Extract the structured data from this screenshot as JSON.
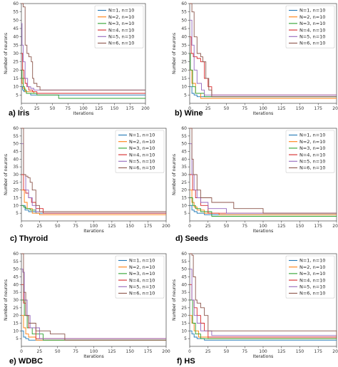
{
  "figure": {
    "colors": [
      "#1f77b4",
      "#ff7f0e",
      "#2ca02c",
      "#d62728",
      "#9467bd",
      "#8c564b"
    ]
  },
  "chart_data": [
    {
      "type": "line",
      "caption": "a) Iris",
      "xlabel": "Iterations",
      "ylabel": "Number of neurons",
      "xlim": [
        0,
        200
      ],
      "ylim": [
        0,
        60
      ],
      "xticks": [
        0,
        25,
        50,
        75,
        100,
        125,
        150,
        175,
        200
      ],
      "yticks": [
        5,
        10,
        15,
        20,
        25,
        30,
        35,
        40,
        45,
        50,
        55,
        60
      ],
      "legend_position": "top-right",
      "grid": false,
      "series": [
        {
          "name": "N=1, n=10",
          "x": [
            0,
            2,
            4,
            8,
            15,
            200
          ],
          "y": [
            10,
            8,
            7,
            6,
            5,
            5
          ]
        },
        {
          "name": "N=2, n=10",
          "x": [
            0,
            1,
            3,
            6,
            20,
            200
          ],
          "y": [
            20,
            12,
            9,
            7,
            6,
            6
          ]
        },
        {
          "name": "N=3, n=10",
          "x": [
            0,
            1,
            3,
            5,
            8,
            25,
            60,
            200
          ],
          "y": [
            20,
            15,
            10,
            8,
            6,
            5,
            3,
            3
          ]
        },
        {
          "name": "N=4, n=10",
          "x": [
            0,
            2,
            4,
            6,
            9,
            12,
            18,
            25,
            200
          ],
          "y": [
            30,
            20,
            15,
            12,
            10,
            8,
            7,
            6,
            6
          ]
        },
        {
          "name": "N=5, n=10",
          "x": [
            0,
            1,
            3,
            6,
            10,
            15,
            20,
            200
          ],
          "y": [
            48,
            35,
            25,
            15,
            10,
            9,
            8,
            8
          ]
        },
        {
          "name": "N=6, n=10",
          "x": [
            0,
            3,
            6,
            9,
            12,
            16,
            18,
            20,
            25,
            30,
            200
          ],
          "y": [
            60,
            58,
            35,
            30,
            28,
            25,
            15,
            12,
            10,
            8,
            8
          ]
        }
      ]
    },
    {
      "type": "line",
      "caption": "b) Wine",
      "xlabel": "Iterations",
      "ylabel": "Number of neurons",
      "xlim": [
        0,
        200
      ],
      "ylim": [
        0,
        60
      ],
      "xticks": [
        0,
        25,
        50,
        75,
        100,
        125,
        150,
        175,
        200
      ],
      "yticks": [
        5,
        10,
        15,
        20,
        25,
        30,
        35,
        40,
        45,
        50,
        55,
        60
      ],
      "legend_position": "top-right",
      "grid": false,
      "series": [
        {
          "name": "N=1, n=10",
          "x": [
            0,
            3,
            6,
            10,
            200
          ],
          "y": [
            10,
            6,
            5,
            4,
            4
          ]
        },
        {
          "name": "N=2, n=10",
          "x": [
            0,
            3,
            8,
            15,
            200
          ],
          "y": [
            20,
            12,
            6,
            3,
            3
          ]
        },
        {
          "name": "N=3, n=10",
          "x": [
            0,
            1,
            4,
            8,
            20,
            200
          ],
          "y": [
            30,
            20,
            10,
            6,
            4,
            4
          ]
        },
        {
          "name": "N=4, n=10",
          "x": [
            0,
            2,
            5,
            10,
            15,
            20,
            25,
            30,
            200
          ],
          "y": [
            40,
            30,
            28,
            27,
            25,
            15,
            10,
            5,
            5
          ]
        },
        {
          "name": "N=5, n=10",
          "x": [
            0,
            3,
            6,
            10,
            16,
            20,
            200
          ],
          "y": [
            50,
            35,
            20,
            12,
            8,
            5,
            5
          ]
        },
        {
          "name": "N=6, n=10",
          "x": [
            0,
            3,
            6,
            10,
            15,
            18,
            22,
            26,
            30,
            200
          ],
          "y": [
            60,
            55,
            40,
            30,
            28,
            25,
            15,
            8,
            4,
            4
          ]
        }
      ]
    },
    {
      "type": "line",
      "caption": "c) Thyroid",
      "xlabel": "Iterations",
      "ylabel": "Number of neurons",
      "xlim": [
        0,
        200
      ],
      "ylim": [
        0,
        60
      ],
      "xticks": [
        0,
        25,
        50,
        75,
        100,
        125,
        150,
        175,
        200
      ],
      "yticks": [
        5,
        10,
        15,
        20,
        25,
        30,
        35,
        40,
        45,
        50,
        55,
        60
      ],
      "legend_position": "top-right",
      "grid": false,
      "series": [
        {
          "name": "N=1, n=10",
          "x": [
            0,
            5,
            10,
            20,
            200
          ],
          "y": [
            10,
            7,
            6,
            5,
            5
          ]
        },
        {
          "name": "N=2, n=10",
          "x": [
            0,
            4,
            8,
            15,
            25,
            200
          ],
          "y": [
            20,
            12,
            8,
            5,
            4,
            4
          ]
        },
        {
          "name": "N=3, n=10",
          "x": [
            0,
            3,
            6,
            12,
            20,
            200
          ],
          "y": [
            10,
            9,
            8,
            7,
            6,
            6
          ]
        },
        {
          "name": "N=4, n=10",
          "x": [
            0,
            3,
            6,
            10,
            14,
            20,
            30,
            200
          ],
          "y": [
            30,
            20,
            18,
            15,
            12,
            8,
            5,
            5
          ]
        },
        {
          "name": "N=5, n=10",
          "x": [
            0,
            3,
            6,
            10,
            15,
            20,
            200
          ],
          "y": [
            50,
            30,
            20,
            15,
            10,
            6,
            6
          ]
        },
        {
          "name": "N=6, n=10",
          "x": [
            0,
            3,
            6,
            9,
            12,
            15,
            20,
            25,
            200
          ],
          "y": [
            60,
            30,
            29,
            28,
            25,
            20,
            10,
            6,
            6
          ]
        }
      ]
    },
    {
      "type": "line",
      "caption": "d) Seeds",
      "xlabel": "Iterations",
      "ylabel": "Number of neurons",
      "xlim": [
        0,
        200
      ],
      "ylim": [
        0,
        60
      ],
      "xticks": [
        0,
        25,
        50,
        75,
        100,
        125,
        150,
        175,
        200
      ],
      "yticks": [
        5,
        10,
        15,
        20,
        25,
        30,
        35,
        40,
        45,
        50,
        55,
        60
      ],
      "legend_position": "top-right",
      "grid": false,
      "series": [
        {
          "name": "N=1, n=10",
          "x": [
            0,
            3,
            6,
            10,
            20,
            200
          ],
          "y": [
            10,
            7,
            6,
            5,
            4,
            4
          ]
        },
        {
          "name": "N=2, n=10",
          "x": [
            0,
            3,
            6,
            10,
            20,
            40,
            200
          ],
          "y": [
            20,
            12,
            9,
            7,
            5,
            4,
            4
          ]
        },
        {
          "name": "N=3, n=10",
          "x": [
            0,
            4,
            8,
            15,
            30,
            200
          ],
          "y": [
            15,
            10,
            8,
            6,
            3,
            3
          ]
        },
        {
          "name": "N=4, n=10",
          "x": [
            0,
            4,
            8,
            15,
            25,
            200
          ],
          "y": [
            30,
            20,
            15,
            10,
            5,
            5
          ]
        },
        {
          "name": "N=5, n=10",
          "x": [
            0,
            3,
            6,
            10,
            15,
            25,
            50,
            200
          ],
          "y": [
            50,
            30,
            20,
            15,
            12,
            8,
            5,
            5
          ]
        },
        {
          "name": "N=6, n=10",
          "x": [
            0,
            3,
            5,
            10,
            15,
            30,
            60,
            100,
            200
          ],
          "y": [
            60,
            40,
            30,
            20,
            15,
            12,
            8,
            5,
            5
          ]
        }
      ]
    },
    {
      "type": "line",
      "caption": "e) WDBC",
      "xlabel": "Iterations",
      "ylabel": "Number of neurons",
      "xlim": [
        0,
        200
      ],
      "ylim": [
        0,
        60
      ],
      "xticks": [
        0,
        25,
        50,
        75,
        100,
        125,
        150,
        175,
        200
      ],
      "yticks": [
        5,
        10,
        15,
        20,
        25,
        30,
        35,
        40,
        45,
        50,
        55,
        60
      ],
      "legend_position": "top-right",
      "grid": false,
      "series": [
        {
          "name": "N=1, n=10",
          "x": [
            0,
            3,
            6,
            10,
            200
          ],
          "y": [
            10,
            6,
            5,
            4,
            4
          ]
        },
        {
          "name": "N=2, n=10",
          "x": [
            0,
            3,
            6,
            10,
            20,
            200
          ],
          "y": [
            20,
            12,
            8,
            6,
            4,
            4
          ]
        },
        {
          "name": "N=3, n=10",
          "x": [
            0,
            4,
            8,
            15,
            30,
            200
          ],
          "y": [
            30,
            20,
            12,
            8,
            4,
            4
          ]
        },
        {
          "name": "N=4, n=10",
          "x": [
            0,
            3,
            6,
            10,
            20,
            200
          ],
          "y": [
            40,
            28,
            20,
            12,
            5,
            5
          ]
        },
        {
          "name": "N=5, n=10",
          "x": [
            0,
            2,
            4,
            8,
            12,
            25,
            200
          ],
          "y": [
            50,
            48,
            30,
            20,
            12,
            5,
            5
          ]
        },
        {
          "name": "N=6, n=10",
          "x": [
            0,
            3,
            6,
            10,
            20,
            40,
            60,
            200
          ],
          "y": [
            60,
            35,
            20,
            15,
            10,
            8,
            4,
            4
          ]
        }
      ]
    },
    {
      "type": "line",
      "caption": "f) HS",
      "xlabel": "Iterations",
      "ylabel": "Number of neurons",
      "xlim": [
        0,
        200
      ],
      "ylim": [
        0,
        60
      ],
      "xticks": [
        0,
        25,
        50,
        75,
        100,
        125,
        150,
        175,
        200
      ],
      "yticks": [
        5,
        10,
        15,
        20,
        25,
        30,
        35,
        40,
        45,
        50,
        55,
        60
      ],
      "legend_position": "top-right",
      "grid": false,
      "series": [
        {
          "name": "N=1, n=10",
          "x": [
            0,
            3,
            6,
            10,
            20,
            200
          ],
          "y": [
            10,
            8,
            6,
            5,
            4,
            4
          ]
        },
        {
          "name": "N=2, n=10",
          "x": [
            0,
            3,
            6,
            12,
            25,
            200
          ],
          "y": [
            20,
            15,
            10,
            6,
            5,
            5
          ]
        },
        {
          "name": "N=3, n=10",
          "x": [
            0,
            4,
            8,
            15,
            200
          ],
          "y": [
            30,
            15,
            8,
            5,
            5
          ]
        },
        {
          "name": "N=4, n=10",
          "x": [
            0,
            3,
            6,
            10,
            15,
            20,
            25,
            200
          ],
          "y": [
            40,
            30,
            25,
            20,
            15,
            10,
            6,
            6
          ]
        },
        {
          "name": "N=5, n=10",
          "x": [
            0,
            3,
            6,
            10,
            15,
            30,
            200
          ],
          "y": [
            50,
            30,
            20,
            15,
            10,
            7,
            7
          ]
        },
        {
          "name": "N=6, n=10",
          "x": [
            0,
            3,
            5,
            8,
            10,
            15,
            20,
            25,
            200
          ],
          "y": [
            60,
            59,
            45,
            30,
            28,
            25,
            20,
            10,
            5
          ]
        }
      ]
    }
  ]
}
